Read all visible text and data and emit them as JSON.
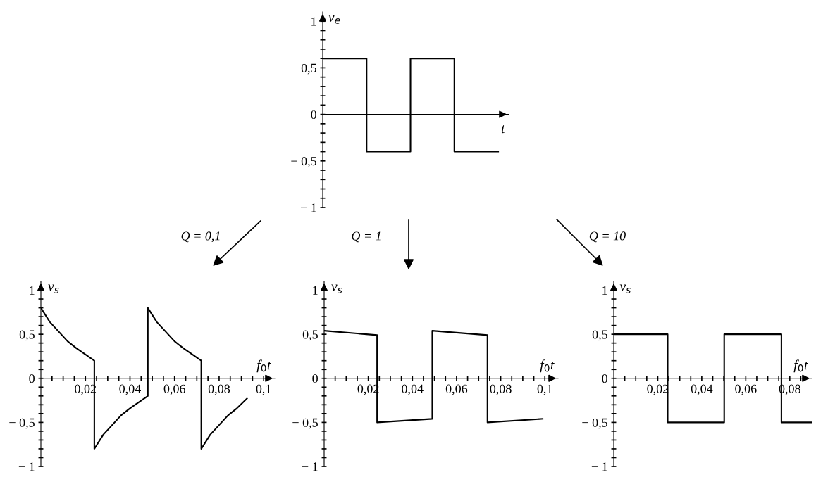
{
  "chart_data": [
    {
      "type": "step",
      "ylabel": "v$_{e}$",
      "xlabel": "t",
      "categories": [
        null,
        null,
        null,
        null,
        null
      ],
      "series": [
        {
          "color": "#000000",
          "values": [
            0.6,
            -0.4,
            0.6,
            -0.4,
            -0.4
          ]
        }
      ],
      "ylim": [
        -1,
        1.1
      ],
      "yticks": [
        {
          "value": -1,
          "label": "− 1"
        },
        {
          "value": -0.9,
          "label": null
        },
        {
          "value": -0.8,
          "label": null
        },
        {
          "value": -0.7,
          "label": null
        },
        {
          "value": -0.6,
          "label": null
        },
        {
          "value": -0.5,
          "label": "− 0,5"
        },
        {
          "value": -0.4,
          "label": null
        },
        {
          "value": -0.3,
          "label": null
        },
        {
          "value": -0.2,
          "label": null
        },
        {
          "value": -0.1,
          "label": null
        },
        {
          "value": 0,
          "label": "0"
        },
        {
          "value": 0.1,
          "label": null
        },
        {
          "value": 0.2,
          "label": null
        },
        {
          "value": 0.3,
          "label": null
        },
        {
          "value": 0.4,
          "label": null
        },
        {
          "value": 0.5,
          "label": "0,5"
        },
        {
          "value": 0.6,
          "label": null
        },
        {
          "value": 0.7,
          "label": null
        },
        {
          "value": 0.8,
          "label": null
        },
        {
          "value": 0.9,
          "label": null
        },
        {
          "value": 1,
          "label": "1"
        }
      ]
    },
    {
      "type": "line",
      "ylabel": "v$_{s}$",
      "xlabel": "f$_{0}$t",
      "annotations": [
        "Q = 0,1"
      ],
      "x": [
        0,
        0.004,
        0.008,
        0.012,
        0.016,
        0.02,
        0.024,
        0.024,
        0.028,
        0.032,
        0.036,
        0.04,
        0.044,
        0.048,
        0.048,
        0.052,
        0.056,
        0.06,
        0.064,
        0.068,
        0.072,
        0.072,
        0.076,
        0.08,
        0.084,
        0.088,
        0.0925
      ],
      "series": [
        {
          "color": "#000000",
          "values": [
            0.8,
            0.64,
            0.53,
            0.42,
            0.34,
            0.27,
            0.2,
            -0.8,
            -0.64,
            -0.53,
            -0.42,
            -0.34,
            -0.27,
            -0.2,
            0.8,
            0.64,
            0.53,
            0.42,
            0.34,
            0.27,
            0.2,
            -0.8,
            -0.64,
            -0.53,
            -0.42,
            -0.34,
            -0.23
          ]
        }
      ],
      "xlim": [
        0,
        0.105
      ],
      "ylim": [
        -1,
        1.1
      ],
      "xticks": [
        {
          "value": 0.005,
          "label": null
        },
        {
          "value": 0.01,
          "label": null
        },
        {
          "value": 0.015,
          "label": null
        },
        {
          "value": 0.02,
          "label": "0,02"
        },
        {
          "value": 0.025,
          "label": null
        },
        {
          "value": 0.03,
          "label": null
        },
        {
          "value": 0.035,
          "label": null
        },
        {
          "value": 0.04,
          "label": "0,04"
        },
        {
          "value": 0.045,
          "label": null
        },
        {
          "value": 0.05,
          "label": null
        },
        {
          "value": 0.055,
          "label": null
        },
        {
          "value": 0.06,
          "label": "0,06"
        },
        {
          "value": 0.065,
          "label": null
        },
        {
          "value": 0.07,
          "label": null
        },
        {
          "value": 0.075,
          "label": null
        },
        {
          "value": 0.08,
          "label": "0,08"
        },
        {
          "value": 0.085,
          "label": null
        },
        {
          "value": 0.09,
          "label": null
        },
        {
          "value": 0.095,
          "label": null
        },
        {
          "value": 0.1,
          "label": "0,1"
        }
      ],
      "yticks": [
        {
          "value": -1,
          "label": "− 1"
        },
        {
          "value": -0.9,
          "label": null
        },
        {
          "value": -0.8,
          "label": null
        },
        {
          "value": -0.7,
          "label": null
        },
        {
          "value": -0.6,
          "label": null
        },
        {
          "value": -0.5,
          "label": "− 0,5"
        },
        {
          "value": -0.4,
          "label": null
        },
        {
          "value": -0.3,
          "label": null
        },
        {
          "value": -0.2,
          "label": null
        },
        {
          "value": -0.1,
          "label": null
        },
        {
          "value": 0,
          "label": "0"
        },
        {
          "value": 0.1,
          "label": null
        },
        {
          "value": 0.2,
          "label": null
        },
        {
          "value": 0.3,
          "label": null
        },
        {
          "value": 0.4,
          "label": null
        },
        {
          "value": 0.5,
          "label": "0,5"
        },
        {
          "value": 0.6,
          "label": null
        },
        {
          "value": 0.7,
          "label": null
        },
        {
          "value": 0.8,
          "label": null
        },
        {
          "value": 0.9,
          "label": null
        },
        {
          "value": 1,
          "label": "1"
        }
      ]
    },
    {
      "type": "line",
      "ylabel": "v$_{s}$",
      "xlabel": "f$_{0}$t",
      "annotations": [
        "Q = 1"
      ],
      "x": [
        0,
        0.024,
        0.024,
        0.049,
        0.049,
        0.074,
        0.074,
        0.099
      ],
      "series": [
        {
          "color": "#000000",
          "values": [
            0.54,
            0.49,
            -0.5,
            -0.46,
            0.54,
            0.49,
            -0.5,
            -0.46
          ]
        }
      ],
      "xlim": [
        0,
        0.106
      ],
      "ylim": [
        -1,
        1.1
      ],
      "xticks": [
        {
          "value": 0.005,
          "label": null
        },
        {
          "value": 0.01,
          "label": null
        },
        {
          "value": 0.015,
          "label": null
        },
        {
          "value": 0.02,
          "label": "0,02"
        },
        {
          "value": 0.025,
          "label": null
        },
        {
          "value": 0.03,
          "label": null
        },
        {
          "value": 0.035,
          "label": null
        },
        {
          "value": 0.04,
          "label": "0,04"
        },
        {
          "value": 0.045,
          "label": null
        },
        {
          "value": 0.05,
          "label": null
        },
        {
          "value": 0.055,
          "label": null
        },
        {
          "value": 0.06,
          "label": "0,06"
        },
        {
          "value": 0.065,
          "label": null
        },
        {
          "value": 0.07,
          "label": null
        },
        {
          "value": 0.075,
          "label": null
        },
        {
          "value": 0.08,
          "label": "0,08"
        },
        {
          "value": 0.085,
          "label": null
        },
        {
          "value": 0.09,
          "label": null
        },
        {
          "value": 0.095,
          "label": null
        },
        {
          "value": 0.1,
          "label": "0,1"
        }
      ],
      "yticks": [
        {
          "value": -1,
          "label": "− 1"
        },
        {
          "value": -0.9,
          "label": null
        },
        {
          "value": -0.8,
          "label": null
        },
        {
          "value": -0.7,
          "label": null
        },
        {
          "value": -0.6,
          "label": null
        },
        {
          "value": -0.5,
          "label": "− 0,5"
        },
        {
          "value": -0.4,
          "label": null
        },
        {
          "value": -0.3,
          "label": null
        },
        {
          "value": -0.2,
          "label": null
        },
        {
          "value": -0.1,
          "label": null
        },
        {
          "value": 0,
          "label": "0"
        },
        {
          "value": 0.1,
          "label": null
        },
        {
          "value": 0.2,
          "label": null
        },
        {
          "value": 0.3,
          "label": null
        },
        {
          "value": 0.4,
          "label": null
        },
        {
          "value": 0.5,
          "label": "0,5"
        },
        {
          "value": 0.6,
          "label": null
        },
        {
          "value": 0.7,
          "label": null
        },
        {
          "value": 0.8,
          "label": null
        },
        {
          "value": 0.9,
          "label": null
        },
        {
          "value": 1,
          "label": "1"
        }
      ]
    },
    {
      "type": "line",
      "ylabel": "v$_{s}$",
      "xlabel": "f$_{0}$t",
      "annotations": [
        "Q = 10"
      ],
      "x": [
        0,
        0.0245,
        0.0245,
        0.0502,
        0.0502,
        0.0762,
        0.0762,
        0.09
      ],
      "series": [
        {
          "color": "#000000",
          "values": [
            0.5,
            0.5,
            -0.5,
            -0.5,
            0.5,
            0.5,
            -0.5,
            -0.5
          ]
        }
      ],
      "xlim": [
        0,
        0.09
      ],
      "ylim": [
        -1,
        1.1
      ],
      "xticks": [
        {
          "value": 0.005,
          "label": null
        },
        {
          "value": 0.01,
          "label": null
        },
        {
          "value": 0.015,
          "label": null
        },
        {
          "value": 0.02,
          "label": "0,02"
        },
        {
          "value": 0.025,
          "label": null
        },
        {
          "value": 0.03,
          "label": null
        },
        {
          "value": 0.035,
          "label": null
        },
        {
          "value": 0.04,
          "label": "0,04"
        },
        {
          "value": 0.045,
          "label": null
        },
        {
          "value": 0.05,
          "label": null
        },
        {
          "value": 0.055,
          "label": null
        },
        {
          "value": 0.06,
          "label": "0,06"
        },
        {
          "value": 0.065,
          "label": null
        },
        {
          "value": 0.07,
          "label": null
        },
        {
          "value": 0.075,
          "label": null
        },
        {
          "value": 0.08,
          "label": "0,08"
        },
        {
          "value": 0.085,
          "label": null
        }
      ],
      "yticks": [
        {
          "value": -1,
          "label": "− 1"
        },
        {
          "value": -0.9,
          "label": null
        },
        {
          "value": -0.8,
          "label": null
        },
        {
          "value": -0.7,
          "label": null
        },
        {
          "value": -0.6,
          "label": null
        },
        {
          "value": -0.5,
          "label": "− 0,5"
        },
        {
          "value": -0.4,
          "label": null
        },
        {
          "value": -0.3,
          "label": null
        },
        {
          "value": -0.2,
          "label": null
        },
        {
          "value": -0.1,
          "label": null
        },
        {
          "value": 0,
          "label": "0"
        },
        {
          "value": 0.1,
          "label": null
        },
        {
          "value": 0.2,
          "label": null
        },
        {
          "value": 0.3,
          "label": null
        },
        {
          "value": 0.4,
          "label": null
        },
        {
          "value": 0.5,
          "label": "0,5"
        },
        {
          "value": 0.6,
          "label": null
        },
        {
          "value": 0.7,
          "label": null
        },
        {
          "value": 0.8,
          "label": null
        },
        {
          "value": 0.9,
          "label": null
        },
        {
          "value": 1,
          "label": "1"
        }
      ]
    }
  ]
}
